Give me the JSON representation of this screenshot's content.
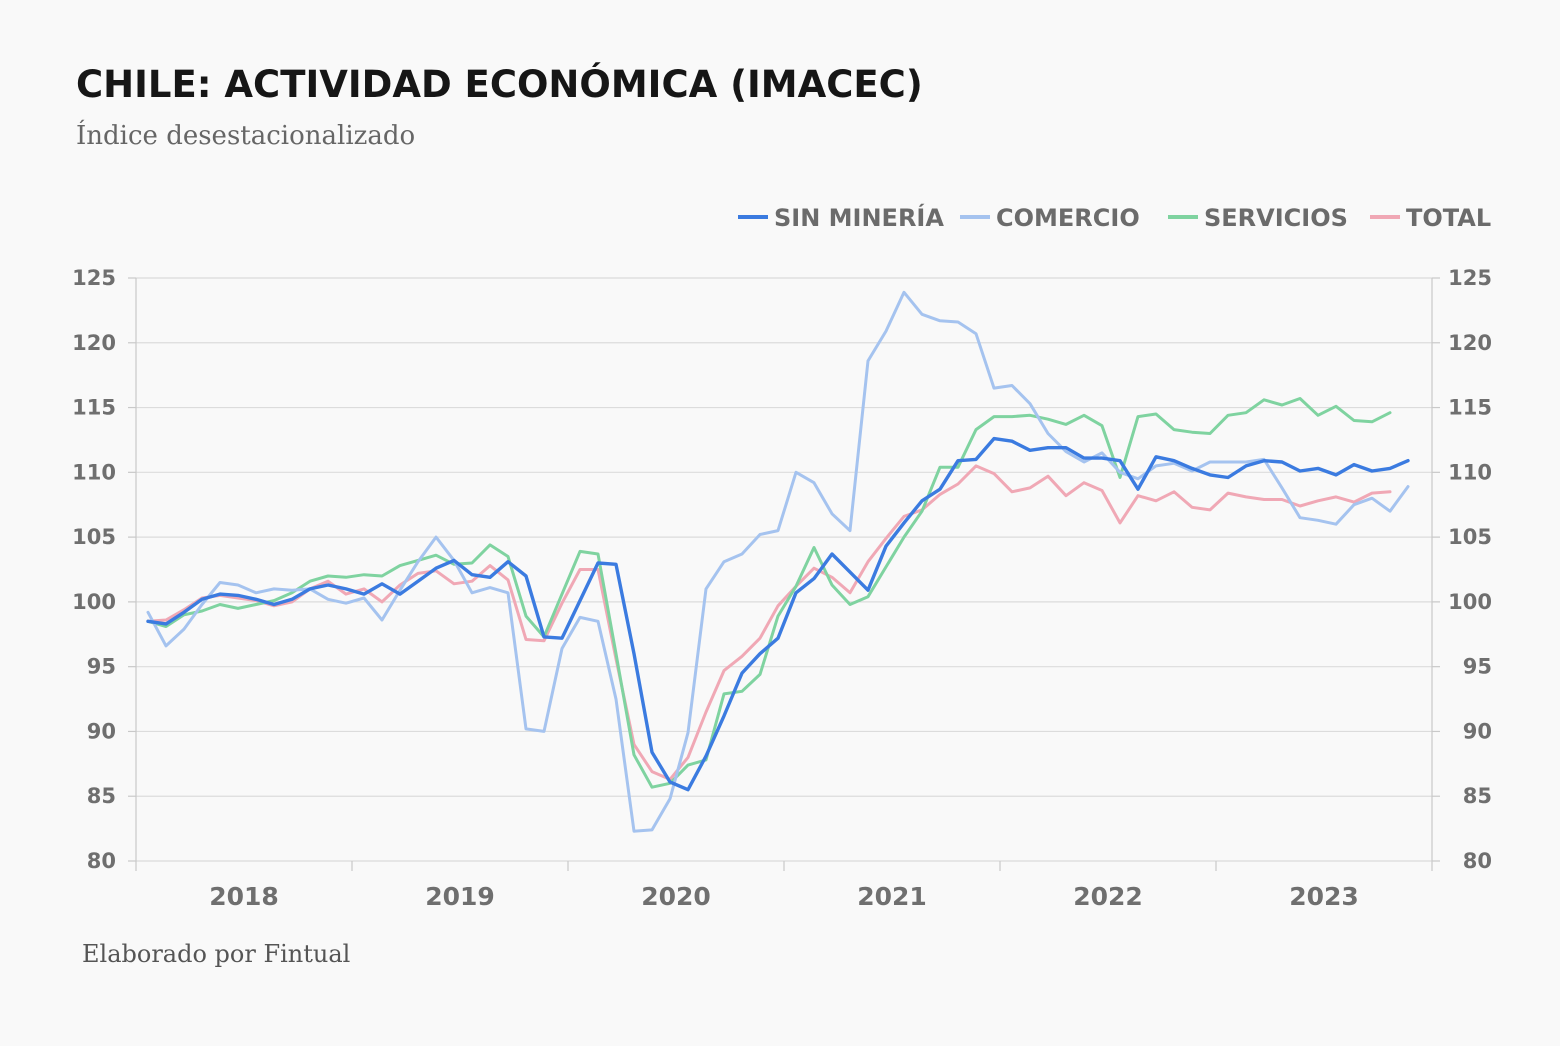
{
  "chart_data": {
    "type": "line",
    "title": "CHILE: ACTIVIDAD ECONÓMICA (IMACEC)",
    "subtitle": "Índice desestacionalizado",
    "source": "Elaborado por Fintual",
    "xlabel": "",
    "ylabel": "",
    "ylim": [
      80,
      125
    ],
    "yticks": [
      "80",
      "85",
      "90",
      "95",
      "100",
      "105",
      "110",
      "115",
      "120",
      "125"
    ],
    "x_axis": {
      "start_month": "2017-12",
      "period_labels": [
        "2018",
        "2019",
        "2020",
        "2021",
        "2022",
        "2023"
      ]
    },
    "grid": true,
    "legend_position": "top-right",
    "series": [
      {
        "name": "SIN MINERÍA",
        "color": "#3b7be0",
        "values": [
          98.5,
          98.3,
          99.2,
          100.2,
          100.6,
          100.5,
          100.2,
          99.8,
          100.2,
          101.0,
          101.3,
          101.0,
          100.6,
          101.4,
          100.6,
          101.6,
          102.6,
          103.2,
          102.1,
          101.9,
          103.1,
          102.0,
          97.3,
          97.2,
          100.1,
          103.0,
          102.9,
          96.0,
          88.4,
          86.1,
          85.5,
          88.1,
          91.2,
          94.5,
          96.0,
          97.2,
          100.7,
          101.8,
          103.7,
          102.3,
          100.9,
          104.3,
          106.1,
          107.8,
          108.7,
          110.9,
          111.0,
          112.6,
          112.4,
          111.7,
          111.9,
          111.9,
          111.1,
          111.1,
          110.9,
          108.7,
          111.2,
          110.9,
          110.3,
          109.8,
          109.6,
          110.5,
          110.9,
          110.8,
          110.1,
          110.3,
          109.8,
          110.6,
          110.1,
          110.3,
          110.9
        ]
      },
      {
        "name": "COMERCIO",
        "color": "#a5c3ef",
        "values": [
          99.2,
          96.6,
          97.9,
          99.8,
          101.5,
          101.3,
          100.7,
          101.0,
          100.9,
          101.0,
          100.2,
          99.9,
          100.3,
          98.6,
          100.9,
          103.1,
          105.0,
          103.2,
          100.7,
          101.1,
          100.7,
          90.2,
          90.0,
          96.4,
          98.8,
          98.5,
          92.5,
          82.3,
          82.4,
          84.8,
          89.9,
          101.0,
          103.1,
          103.7,
          105.2,
          105.5,
          110.0,
          109.2,
          106.8,
          105.5,
          118.6,
          120.9,
          123.9,
          122.2,
          121.7,
          121.6,
          120.7,
          116.5,
          116.7,
          115.3,
          113.0,
          111.6,
          110.8,
          111.5,
          110.0,
          109.5,
          110.5,
          110.7,
          110.1,
          110.8,
          110.8,
          110.8,
          111.0,
          108.8,
          106.5,
          106.3,
          106.0,
          107.5,
          108.0,
          107.0,
          108.9
        ]
      },
      {
        "name": "SERVICIOS",
        "color": "#7fd3a0",
        "values": [
          98.5,
          98.1,
          99.0,
          99.3,
          99.8,
          99.5,
          99.8,
          100.1,
          100.7,
          101.6,
          102.0,
          101.9,
          102.1,
          102.0,
          102.8,
          103.2,
          103.6,
          102.9,
          103.0,
          104.4,
          103.5,
          98.9,
          97.3,
          100.6,
          103.9,
          103.7,
          96.0,
          88.2,
          85.7,
          86.0,
          87.4,
          87.8,
          92.9,
          93.1,
          94.4,
          98.9,
          101.2,
          104.2,
          101.3,
          99.8,
          100.4,
          102.7,
          105.0,
          107.0,
          110.4,
          110.4,
          113.3,
          114.3,
          114.3,
          114.4,
          114.1,
          113.7,
          114.4,
          113.6,
          109.6,
          114.3,
          114.5,
          113.3,
          113.1,
          113.0,
          114.4,
          114.6,
          115.6,
          115.2,
          115.7,
          114.4,
          115.1,
          114.0,
          113.9,
          114.6
        ]
      },
      {
        "name": "TOTAL",
        "color": "#f0a8b5",
        "values": [
          98.5,
          98.6,
          99.4,
          100.3,
          100.5,
          100.3,
          100.1,
          99.7,
          100.0,
          101.0,
          101.6,
          100.6,
          101.0,
          100.0,
          101.3,
          102.2,
          102.4,
          101.4,
          101.6,
          102.8,
          101.7,
          97.1,
          97.0,
          99.9,
          102.5,
          102.5,
          95.6,
          89.0,
          86.9,
          86.3,
          88.0,
          91.5,
          94.7,
          95.8,
          97.2,
          99.7,
          101.2,
          102.6,
          101.9,
          100.7,
          103.1,
          104.9,
          106.6,
          107.1,
          108.3,
          109.1,
          110.5,
          109.9,
          108.5,
          108.8,
          109.7,
          108.2,
          109.2,
          108.6,
          106.1,
          108.2,
          107.8,
          108.5,
          107.3,
          107.1,
          108.4,
          108.1,
          107.9,
          107.9,
          107.4,
          107.8,
          108.1,
          107.7,
          108.4,
          108.5
        ]
      }
    ]
  }
}
